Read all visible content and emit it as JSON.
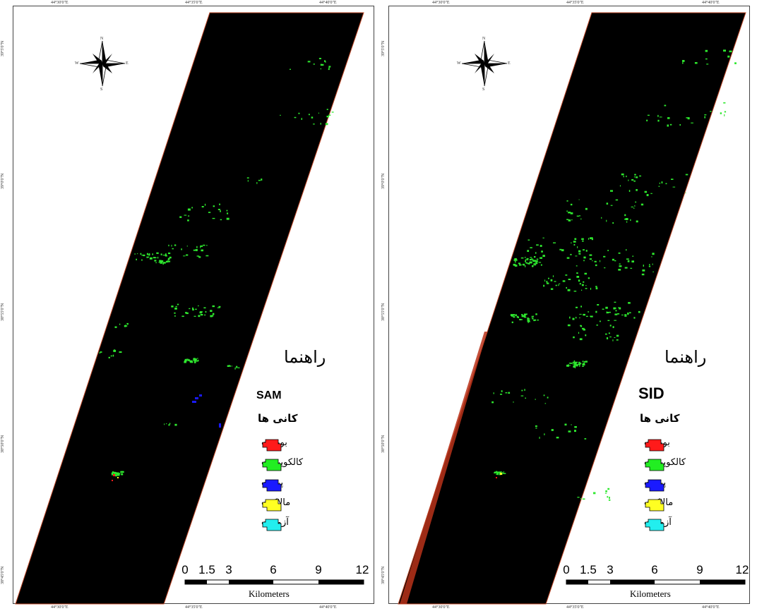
{
  "maps": [
    {
      "method": "SAM",
      "legend_title": "راهنما",
      "minerals_heading": "کانی ها",
      "north_arrow": {
        "n": "N",
        "s": "S",
        "e": "E",
        "w": "W"
      },
      "lon_ticks": [
        "44°30'0\"E",
        "44°35'0\"E",
        "44°40'0\"E"
      ],
      "lat_ticks": [
        "39°5'0\"N",
        "39°0'0\"N",
        "38°55'0\"N",
        "38°50'0\"N",
        "38°45'0\"N"
      ]
    },
    {
      "method": "SID",
      "legend_title": "راهنما",
      "minerals_heading": "کانی ها",
      "north_arrow": {
        "n": "N",
        "s": "S",
        "e": "E",
        "w": "W"
      },
      "lon_ticks": [
        "44°30'0\"E",
        "44°35'0\"E",
        "44°40'0\"E"
      ],
      "lat_ticks": [
        "39°5'0\"N",
        "39°0'0\"N",
        "38°55'0\"N",
        "38°50'0\"N",
        "38°45'0\"N"
      ]
    }
  ],
  "legend_items": [
    {
      "label": "بورنیت",
      "color": "#ff1a1a"
    },
    {
      "label": "کالکوپیریت",
      "color": "#22ee22"
    },
    {
      "label": "پیریت",
      "color": "#1a1aff"
    },
    {
      "label": "مالاکیت",
      "color": "#ffff22"
    },
    {
      "label": "آزوریت",
      "color": "#22eeee"
    }
  ],
  "scale_bar": {
    "labels": [
      "0",
      "1.5",
      "3",
      "6",
      "9",
      "12"
    ],
    "unit": "Kilometers"
  },
  "colors": {
    "background": "#000000",
    "detection": "#2ee82e"
  }
}
